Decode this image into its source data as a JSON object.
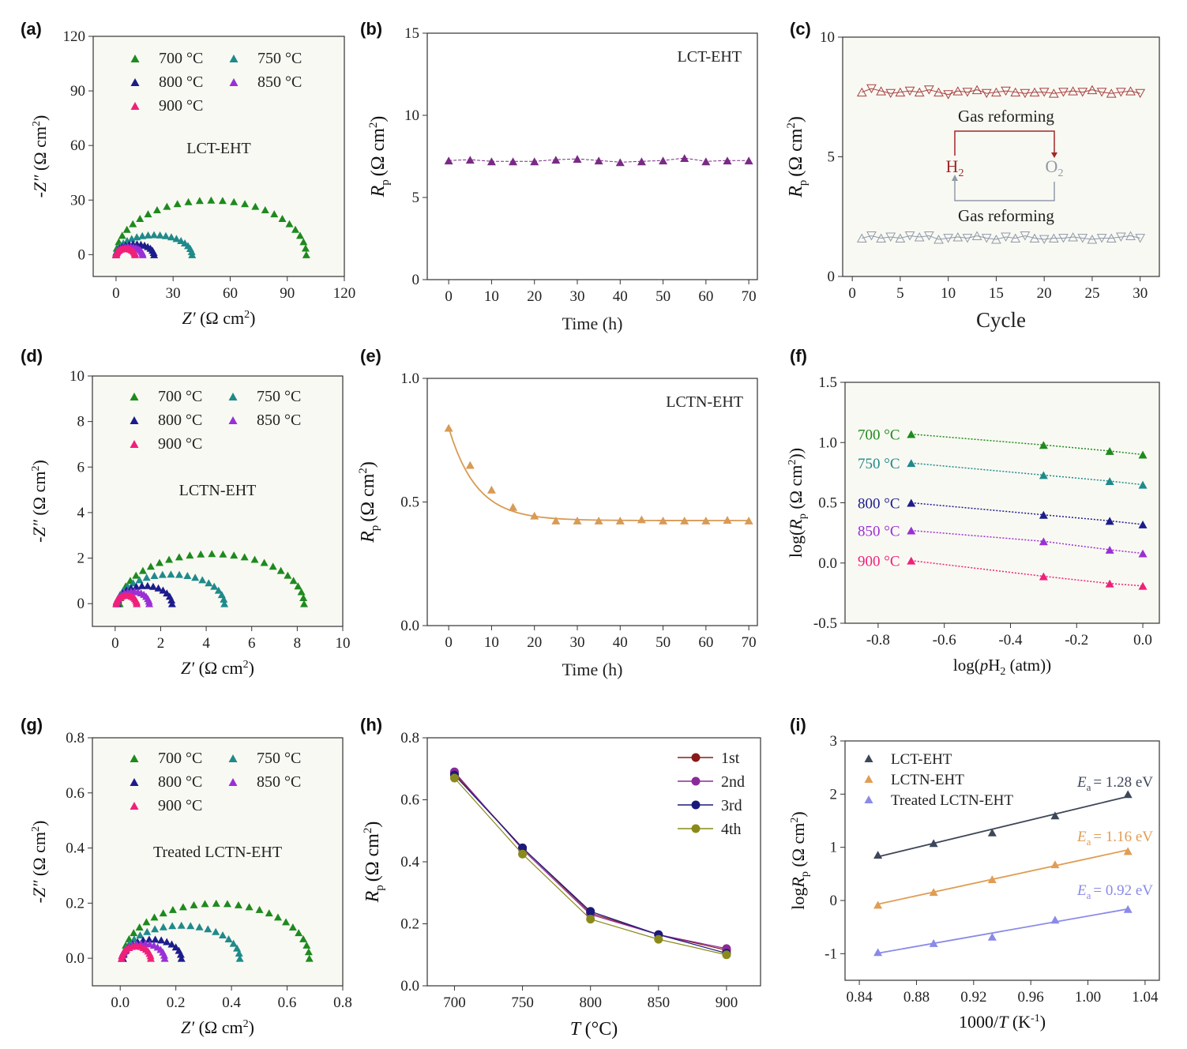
{
  "figure": {
    "panel_labels": [
      "(a)",
      "(b)",
      "(c)",
      "(d)",
      "(e)",
      "(f)",
      "(g)",
      "(h)",
      "(i)"
    ]
  },
  "colors": {
    "t700": "#1e8a1e",
    "t750": "#1f8a8a",
    "t800": "#1c1c8c",
    "t850": "#9a2fd6",
    "t900": "#f0207a",
    "purple_b": "#7a2a86",
    "orange_e": "#d89a55",
    "red_c": "#a84040",
    "gray_c": "#8f9aaa",
    "h_1st": "#8a1a1a",
    "h_2nd": "#8a2a9a",
    "h_3rd": "#1a1a7a",
    "h_4th": "#8a8a1a",
    "i_lct": "#3d4759",
    "i_lctn": "#e09d55",
    "i_treated": "#8a8ae8"
  },
  "chart_data": [
    {
      "id": "a",
      "type": "scatter",
      "sample": "LCT-EHT",
      "xlabel_main": "Z′",
      "xlabel_unit": "(Ω cm",
      "ylabel_main": "-Z″",
      "ylabel_unit": "(Ω cm",
      "xlim": [
        -12,
        120
      ],
      "ylim": [
        -12,
        120
      ],
      "xticks": [
        0,
        30,
        60,
        90,
        120
      ],
      "yticks": [
        0,
        30,
        60,
        90,
        120
      ],
      "xtick_labels": [
        "0",
        "30",
        "60",
        "90",
        "120"
      ],
      "ytick_labels": [
        "0",
        "30",
        "60",
        "90",
        "120"
      ],
      "series": [
        {
          "name": "700 °C",
          "color_key": "t700",
          "x0": 0,
          "x1": 100,
          "peak": 30
        },
        {
          "name": "750 °C",
          "color_key": "t750",
          "x0": 0,
          "x1": 40,
          "peak": 11
        },
        {
          "name": "800 °C",
          "color_key": "t800",
          "x0": 0,
          "x1": 20,
          "peak": 6
        },
        {
          "name": "850 °C",
          "color_key": "t850",
          "x0": 0,
          "x1": 14,
          "peak": 4.5
        },
        {
          "name": "900 °C",
          "color_key": "t900",
          "x0": 0,
          "x1": 10,
          "peak": 3.5
        }
      ]
    },
    {
      "id": "b",
      "type": "line",
      "sample": "LCT-EHT",
      "xlabel": "Time (h)",
      "ylabel_main": "R",
      "ylabel_sub": "p",
      "ylabel_unit": "(Ω cm",
      "xlim": [
        -5,
        72
      ],
      "ylim": [
        0,
        15
      ],
      "xticks": [
        0,
        10,
        20,
        30,
        40,
        50,
        60,
        70
      ],
      "yticks": [
        0,
        5,
        10,
        15
      ],
      "xtick_labels": [
        "0",
        "10",
        "20",
        "30",
        "40",
        "50",
        "60",
        "70"
      ],
      "ytick_labels": [
        "0",
        "5",
        "10",
        "15"
      ],
      "x": [
        0,
        5,
        10,
        15,
        20,
        25,
        30,
        35,
        40,
        45,
        50,
        55,
        60,
        65,
        70
      ],
      "values": [
        7.25,
        7.3,
        7.2,
        7.2,
        7.2,
        7.3,
        7.35,
        7.25,
        7.15,
        7.2,
        7.25,
        7.4,
        7.2,
        7.25,
        7.25
      ]
    },
    {
      "id": "c",
      "type": "line",
      "xlabel": "Cycle",
      "ylabel_main": "R",
      "ylabel_sub": "p",
      "ylabel_unit": "(Ω cm",
      "xlim": [
        -1,
        32
      ],
      "ylim": [
        0,
        10
      ],
      "xticks": [
        0,
        5,
        10,
        15,
        20,
        25,
        30
      ],
      "yticks": [
        0,
        5,
        10
      ],
      "xtick_labels": [
        "0",
        "5",
        "10",
        "15",
        "20",
        "25",
        "30"
      ],
      "ytick_labels": [
        "0",
        "5",
        "10"
      ],
      "series": [
        {
          "name": "H2",
          "color_key": "red_c",
          "values": [
            7.7,
            7.85,
            7.75,
            7.65,
            7.7,
            7.75,
            7.7,
            7.8,
            7.7,
            7.6,
            7.75,
            7.7,
            7.8,
            7.65,
            7.7,
            7.75,
            7.7,
            7.65,
            7.7,
            7.7,
            7.65,
            7.7,
            7.75,
            7.7,
            7.8,
            7.7,
            7.65,
            7.7,
            7.75,
            7.65
          ]
        },
        {
          "name": "O2",
          "color_key": "gray_c",
          "values": [
            1.6,
            1.7,
            1.6,
            1.65,
            1.6,
            1.7,
            1.65,
            1.7,
            1.55,
            1.6,
            1.65,
            1.6,
            1.7,
            1.6,
            1.55,
            1.65,
            1.6,
            1.7,
            1.6,
            1.55,
            1.6,
            1.6,
            1.65,
            1.6,
            1.55,
            1.6,
            1.6,
            1.65,
            1.7,
            1.6
          ]
        }
      ],
      "annotations": {
        "top": "Gas reforming",
        "bottom": "Gas reforming",
        "left_label": "H",
        "right_label": "O",
        "sub": "2"
      }
    },
    {
      "id": "d",
      "type": "scatter",
      "sample": "LCTN-EHT",
      "xlabel_main": "Z′",
      "xlabel_unit": "(Ω cm",
      "ylabel_main": "-Z″",
      "ylabel_unit": "(Ω cm",
      "xlim": [
        -1,
        10
      ],
      "ylim": [
        -1,
        10
      ],
      "xticks": [
        0,
        2,
        4,
        6,
        8,
        10
      ],
      "yticks": [
        0,
        2,
        4,
        6,
        8,
        10
      ],
      "xtick_labels": [
        "0",
        "2",
        "4",
        "6",
        "8",
        "10"
      ],
      "ytick_labels": [
        "0",
        "2",
        "4",
        "6",
        "8",
        "10"
      ],
      "series": [
        {
          "name": "700 °C",
          "color_key": "t700",
          "x0": 0.2,
          "x1": 8.3,
          "peak": 2.2
        },
        {
          "name": "750 °C",
          "color_key": "t750",
          "x0": 0.1,
          "x1": 4.8,
          "peak": 1.3
        },
        {
          "name": "800 °C",
          "color_key": "t800",
          "x0": 0.1,
          "x1": 2.5,
          "peak": 0.8
        },
        {
          "name": "850 °C",
          "color_key": "t850",
          "x0": 0.05,
          "x1": 1.5,
          "peak": 0.55
        },
        {
          "name": "900 °C",
          "color_key": "t900",
          "x0": 0.05,
          "x1": 0.95,
          "peak": 0.38
        }
      ]
    },
    {
      "id": "e",
      "type": "line",
      "sample": "LCTN-EHT",
      "xlabel": "Time (h)",
      "ylabel_main": "R",
      "ylabel_sub": "p",
      "ylabel_unit": "(Ω cm",
      "xlim": [
        -5,
        72
      ],
      "ylim": [
        0,
        1.0
      ],
      "xticks": [
        0,
        10,
        20,
        30,
        40,
        50,
        60,
        70
      ],
      "yticks": [
        0,
        0.5,
        1.0
      ],
      "xtick_labels": [
        "0",
        "10",
        "20",
        "30",
        "40",
        "50",
        "60",
        "70"
      ],
      "ytick_labels": [
        "0.0",
        "0.5",
        "1.0"
      ],
      "x": [
        0,
        5,
        10,
        15,
        20,
        25,
        30,
        35,
        40,
        45,
        50,
        55,
        60,
        65,
        70
      ],
      "values": [
        0.8,
        0.65,
        0.55,
        0.48,
        0.445,
        0.425,
        0.425,
        0.425,
        0.425,
        0.43,
        0.425,
        0.425,
        0.425,
        0.428,
        0.425
      ]
    },
    {
      "id": "f",
      "type": "line",
      "xlabel": "log(pH2 (atm))",
      "ylabel": "log(Rp (Ω cm2))",
      "xlim": [
        -0.9,
        0.05
      ],
      "ylim": [
        -0.5,
        1.5
      ],
      "xticks": [
        -0.8,
        -0.6,
        -0.4,
        -0.2,
        0.0
      ],
      "yticks": [
        -0.5,
        0,
        0.5,
        1.0,
        1.5
      ],
      "xtick_labels": [
        "-0.8",
        "-0.6",
        "-0.4",
        "-0.2",
        "0.0"
      ],
      "ytick_labels": [
        "-0.5",
        "0.0",
        "0.5",
        "1.0",
        "1.5"
      ],
      "x": [
        -0.7,
        -0.3,
        -0.1,
        0.0
      ],
      "series": [
        {
          "name": "700 °C",
          "color_key": "t700",
          "values": [
            1.07,
            0.98,
            0.93,
            0.9
          ]
        },
        {
          "name": "750 °C",
          "color_key": "t750",
          "values": [
            0.83,
            0.73,
            0.68,
            0.65
          ]
        },
        {
          "name": "800 °C",
          "color_key": "t800",
          "values": [
            0.5,
            0.4,
            0.35,
            0.32
          ]
        },
        {
          "name": "850 °C",
          "color_key": "t850",
          "values": [
            0.27,
            0.18,
            0.11,
            0.08
          ]
        },
        {
          "name": "900 °C",
          "color_key": "t900",
          "values": [
            0.02,
            -0.11,
            -0.17,
            -0.19
          ]
        }
      ]
    },
    {
      "id": "g",
      "type": "scatter",
      "sample": "Treated LCTN-EHT",
      "xlabel_main": "Z′",
      "xlabel_unit": "(Ω cm",
      "ylabel_main": "-Z″",
      "ylabel_unit": "(Ω cm",
      "xlim": [
        -0.1,
        0.8
      ],
      "ylim": [
        -0.1,
        0.8
      ],
      "xticks": [
        0,
        0.2,
        0.4,
        0.6,
        0.8
      ],
      "yticks": [
        0,
        0.2,
        0.4,
        0.6,
        0.8
      ],
      "xtick_labels": [
        "0.0",
        "0.2",
        "0.4",
        "0.6",
        "0.8"
      ],
      "ytick_labels": [
        "0.0",
        "0.2",
        "0.4",
        "0.6",
        "0.8"
      ],
      "series": [
        {
          "name": "700 °C",
          "color_key": "t700",
          "x0": 0.01,
          "x1": 0.68,
          "peak": 0.2
        },
        {
          "name": "750 °C",
          "color_key": "t750",
          "x0": 0.01,
          "x1": 0.43,
          "peak": 0.12
        },
        {
          "name": "800 °C",
          "color_key": "t800",
          "x0": 0.01,
          "x1": 0.22,
          "peak": 0.07
        },
        {
          "name": "850 °C",
          "color_key": "t850",
          "x0": 0.005,
          "x1": 0.16,
          "peak": 0.055
        },
        {
          "name": "900 °C",
          "color_key": "t900",
          "x0": 0.005,
          "x1": 0.11,
          "peak": 0.045
        }
      ]
    },
    {
      "id": "h",
      "type": "line",
      "xlabel_main": "T",
      "xlabel_unit": "(°C)",
      "ylabel_main": "R",
      "ylabel_sub": "p",
      "ylabel_unit": "(Ω cm",
      "xlim": [
        680,
        925
      ],
      "ylim": [
        0,
        0.8
      ],
      "xticks": [
        700,
        750,
        800,
        850,
        900
      ],
      "yticks": [
        0,
        0.2,
        0.4,
        0.6,
        0.8
      ],
      "xtick_labels": [
        "700",
        "750",
        "800",
        "850",
        "900"
      ],
      "ytick_labels": [
        "0.0",
        "0.2",
        "0.4",
        "0.6",
        "0.8"
      ],
      "x": [
        700,
        750,
        800,
        850,
        900
      ],
      "series": [
        {
          "name": "1st",
          "color_key": "h_1st",
          "values": [
            0.685,
            0.445,
            0.235,
            0.165,
            0.115
          ]
        },
        {
          "name": "2nd",
          "color_key": "h_2nd",
          "values": [
            0.69,
            0.44,
            0.23,
            0.165,
            0.12
          ]
        },
        {
          "name": "3rd",
          "color_key": "h_3rd",
          "values": [
            0.68,
            0.445,
            0.24,
            0.165,
            0.105
          ]
        },
        {
          "name": "4th",
          "color_key": "h_4th",
          "values": [
            0.67,
            0.425,
            0.215,
            0.15,
            0.1
          ]
        }
      ]
    },
    {
      "id": "i",
      "type": "line",
      "xlabel": "1000/T (K-1)",
      "ylabel": "logRp (Ω cm2)",
      "xlim": [
        0.83,
        1.05
      ],
      "ylim": [
        -1.5,
        3
      ],
      "xticks": [
        0.84,
        0.88,
        0.92,
        0.96,
        1.0,
        1.04
      ],
      "yticks": [
        -1,
        0,
        1,
        2,
        3
      ],
      "xtick_labels": [
        "0.84",
        "0.88",
        "0.92",
        "0.96",
        "1.00",
        "1.04"
      ],
      "ytick_labels": [
        "-1",
        "0",
        "1",
        "2",
        "3"
      ],
      "x": [
        0.853,
        0.892,
        0.933,
        0.977,
        1.028
      ],
      "series": [
        {
          "name": "LCT-EHT",
          "color_key": "i_lct",
          "values": [
            0.86,
            1.08,
            1.28,
            1.6,
            2.0
          ],
          "ea": "= 1.28 eV"
        },
        {
          "name": "LCTN-EHT",
          "color_key": "i_lctn",
          "values": [
            -0.08,
            0.16,
            0.4,
            0.68,
            0.93
          ],
          "ea": "= 1.16 eV"
        },
        {
          "name": "Treated LCTN-EHT",
          "color_key": "i_treated",
          "values": [
            -0.97,
            -0.8,
            -0.68,
            -0.36,
            -0.16
          ],
          "ea": "= 0.92 eV"
        }
      ]
    }
  ]
}
